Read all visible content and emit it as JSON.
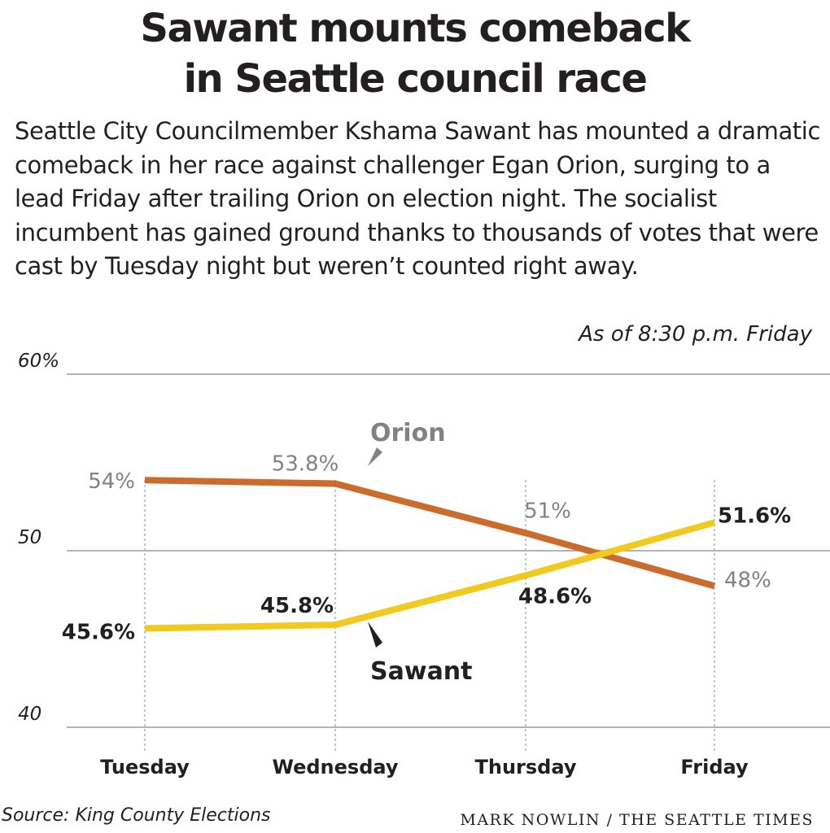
{
  "header": {
    "title_line1": "Sawant mounts comeback",
    "title_line2": "in Seattle council race",
    "intro": "Seattle City Councilmember Kshama Sawant has mounted a dramatic comeback in her race against challenger Egan Orion, surging to a lead Friday after trailing Orion on election night. The socialist incumbent has gained ground thanks to thousands of votes that were cast by Tuesday night but weren’t counted right away.",
    "as_of": "As of 8:30 p.m. Friday"
  },
  "footer": {
    "source": "Source: King County Elections",
    "credit": "MARK NOWLIN / THE SEATTLE TIMES"
  },
  "colors": {
    "orion": "#cc6b2c",
    "sawant": "#f2c91e",
    "orion_label": "#808285",
    "sawant_label": "#231f20",
    "grid": "#b3b3b3",
    "dropline": "#b3b3b3"
  },
  "chart_data": {
    "type": "line",
    "categories": [
      "Tuesday",
      "Wednesday",
      "Thursday",
      "Friday"
    ],
    "y_ticks": [
      {
        "value": 60,
        "label": "60%"
      },
      {
        "value": 50,
        "label": "50"
      },
      {
        "value": 40,
        "label": "40"
      }
    ],
    "ylim": [
      40,
      60
    ],
    "grid": true,
    "series": [
      {
        "name": "Orion",
        "color": "#cc6b2c",
        "values": [
          54,
          53.8,
          51,
          48
        ],
        "labels": [
          "54%",
          "53.8%",
          "51%",
          "48%"
        ]
      },
      {
        "name": "Sawant",
        "color": "#f2c91e",
        "values": [
          45.6,
          45.8,
          48.6,
          51.6
        ],
        "labels": [
          "45.6%",
          "45.8%",
          "48.6%",
          "51.6%"
        ]
      }
    ]
  }
}
